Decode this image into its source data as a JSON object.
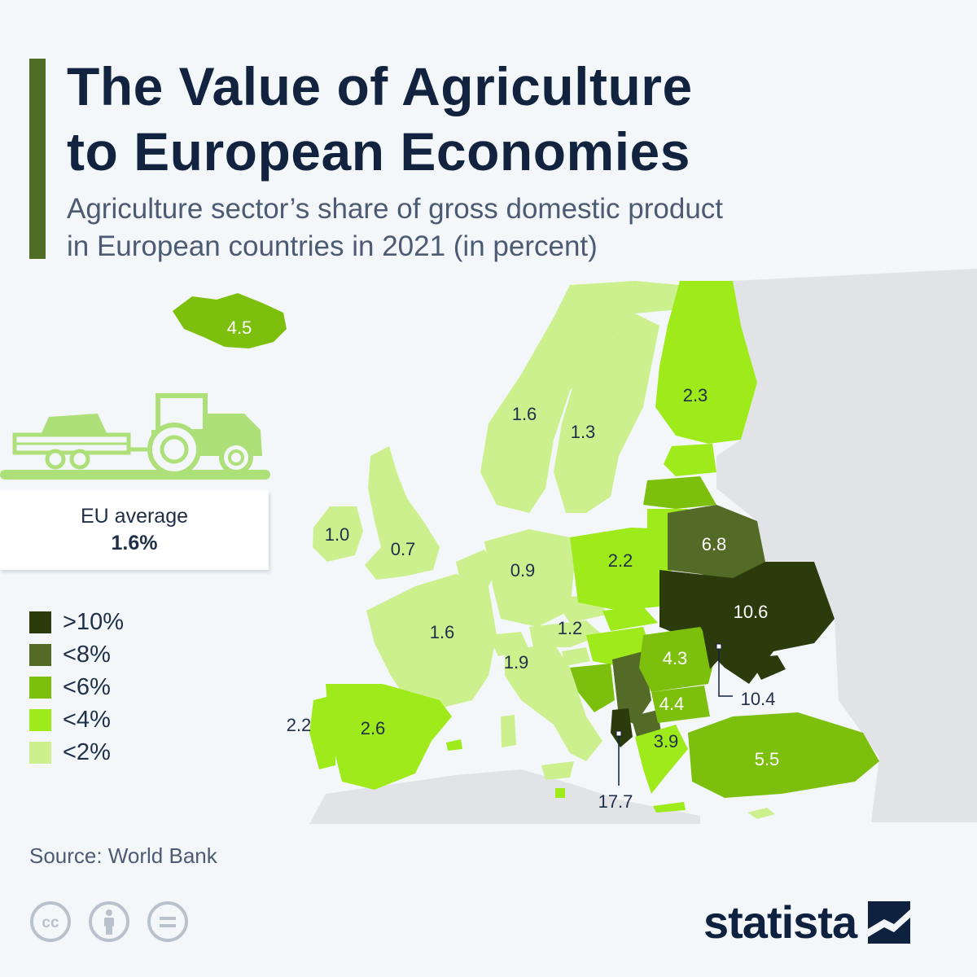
{
  "header": {
    "title_line1": "The Value of Agriculture",
    "title_line2": "to European Economies",
    "subtitle_line1": "Agriculture sector’s share of gross domestic product",
    "subtitle_line2": "in European countries in 2021 (in percent)"
  },
  "eu_average": {
    "label": "EU average",
    "value": "1.6%"
  },
  "legend": [
    {
      "label": ">10%",
      "color": "#2c3b0c"
    },
    {
      "label": "<8%",
      "color": "#546b28"
    },
    {
      "label": "<6%",
      "color": "#7cc00d"
    },
    {
      "label": "<4%",
      "color": "#9eea1b"
    },
    {
      "label": "<2%",
      "color": "#cdf08f"
    }
  ],
  "map_labels": {
    "iceland": "4.5",
    "norway": "1.6",
    "sweden": "1.3",
    "finland": "2.3",
    "ireland": "1.0",
    "uk": "0.7",
    "germany": "0.9",
    "poland": "2.2",
    "belarus": "6.8",
    "ukraine": "10.6",
    "france": "1.6",
    "austria": "1.2",
    "italy": "1.9",
    "romania": "4.3",
    "moldova": "10.4",
    "bulgaria": "4.4",
    "portugal": "2.2",
    "spain": "2.6",
    "greece": "3.9",
    "turkey": "5.5",
    "albania": "17.7"
  },
  "source": "Source: World Bank",
  "brand": "statista"
}
